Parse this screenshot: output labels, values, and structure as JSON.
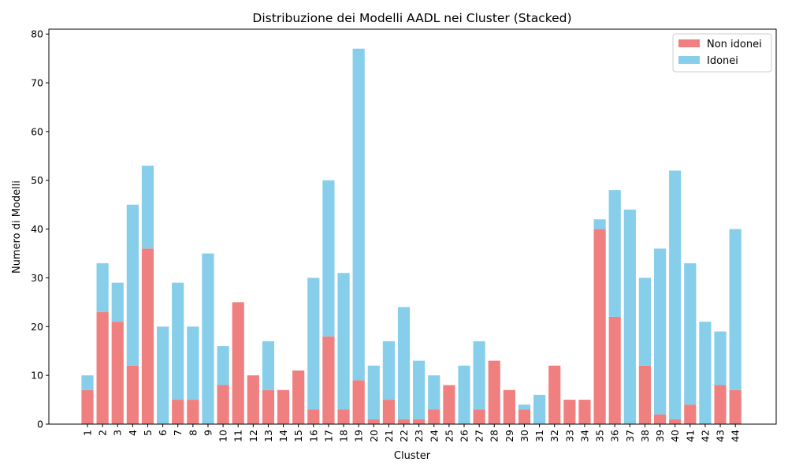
{
  "chart_data": {
    "type": "bar",
    "stacked": true,
    "title": "Distribuzione dei Modelli AADL nei Cluster (Stacked)",
    "xlabel": "Cluster",
    "ylabel": "Numero di Modelli",
    "ylim": [
      0,
      81
    ],
    "yticks": [
      0,
      10,
      20,
      30,
      40,
      50,
      60,
      70,
      80
    ],
    "legend_position": "top-right",
    "categories": [
      "1",
      "2",
      "3",
      "4",
      "5",
      "6",
      "7",
      "8",
      "9",
      "10",
      "11",
      "12",
      "13",
      "14",
      "15",
      "16",
      "17",
      "18",
      "19",
      "20",
      "21",
      "22",
      "23",
      "24",
      "25",
      "26",
      "27",
      "28",
      "29",
      "30",
      "31",
      "32",
      "33",
      "34",
      "35",
      "36",
      "37",
      "38",
      "39",
      "40",
      "41",
      "42",
      "43",
      "44"
    ],
    "series": [
      {
        "name": "Non idonei",
        "color": "#f08080",
        "values": [
          7,
          23,
          21,
          12,
          36,
          0,
          5,
          5,
          0,
          8,
          25,
          10,
          7,
          7,
          11,
          3,
          18,
          3,
          9,
          1,
          5,
          1,
          1,
          3,
          8,
          0,
          3,
          13,
          7,
          3,
          0,
          12,
          5,
          5,
          40,
          22,
          0,
          12,
          2,
          1,
          4,
          0,
          8,
          7
        ]
      },
      {
        "name": "Idonei",
        "color": "#87ceeb",
        "values": [
          3,
          10,
          8,
          33,
          17,
          20,
          24,
          15,
          35,
          8,
          0,
          0,
          10,
          0,
          0,
          27,
          32,
          28,
          68,
          11,
          12,
          23,
          12,
          7,
          0,
          12,
          14,
          0,
          0,
          1,
          6,
          0,
          0,
          0,
          2,
          26,
          44,
          18,
          34,
          51,
          29,
          21,
          11,
          33
        ]
      }
    ]
  }
}
